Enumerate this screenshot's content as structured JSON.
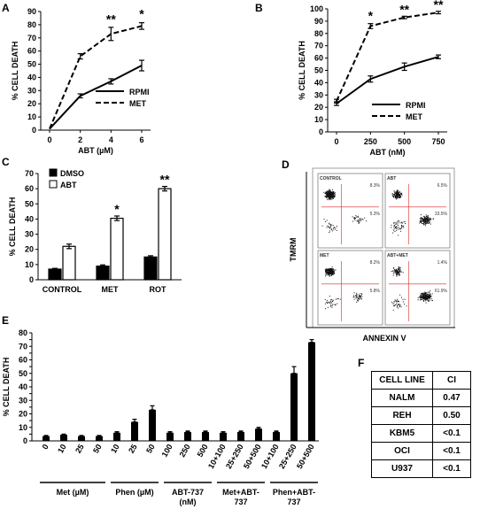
{
  "panel_letters": {
    "A": "A",
    "B": "B",
    "C": "C",
    "D": "D",
    "E": "E",
    "F": "F"
  },
  "chart_data": [
    {
      "id": "A",
      "type": "line",
      "ylabel": "% CELL DEATH",
      "xlabel": "ABT (µM)",
      "x": [
        0,
        2,
        4,
        6
      ],
      "xticks": [
        "0",
        "2",
        "4",
        "6"
      ],
      "ylim": [
        0,
        90
      ],
      "yticks": [
        "0",
        "10",
        "20",
        "30",
        "40",
        "50",
        "60",
        "70",
        "80",
        "90"
      ],
      "series": [
        {
          "name": "RPMI",
          "style": "solid",
          "values": [
            1,
            26,
            37,
            49
          ],
          "err": [
            0,
            1.5,
            2,
            4
          ]
        },
        {
          "name": "MET",
          "style": "dashed",
          "values": [
            1,
            56,
            73,
            79
          ],
          "err": [
            0,
            2,
            5,
            2.5
          ]
        }
      ],
      "annotations": [
        {
          "x": 4,
          "y": 81,
          "text": "**"
        },
        {
          "x": 6,
          "y": 85,
          "text": "*"
        }
      ]
    },
    {
      "id": "B",
      "type": "line",
      "ylabel": "% CELL DEATH",
      "xlabel": "ABT (nM)",
      "x": [
        0,
        250,
        500,
        750
      ],
      "xticks": [
        "0",
        "250",
        "500",
        "750"
      ],
      "ylim": [
        0,
        100
      ],
      "yticks": [
        "0",
        "10",
        "20",
        "30",
        "40",
        "50",
        "60",
        "70",
        "80",
        "90",
        "100"
      ],
      "series": [
        {
          "name": "RPMI",
          "style": "solid",
          "values": [
            23,
            43,
            53,
            61
          ],
          "err": [
            1.5,
            2.5,
            3,
            1.5
          ]
        },
        {
          "name": "MET",
          "style": "dashed",
          "values": [
            25,
            86,
            93,
            97
          ],
          "err": [
            1.5,
            2,
            1,
            1
          ]
        }
      ],
      "annotations": [
        {
          "x": 250,
          "y": 91,
          "text": "*"
        },
        {
          "x": 500,
          "y": 96,
          "text": "**"
        },
        {
          "x": 750,
          "y": 100,
          "text": "**"
        }
      ]
    },
    {
      "id": "C",
      "type": "bar",
      "ylabel": "% CELL DEATH",
      "categories": [
        "CONTROL",
        "MET",
        "ROT"
      ],
      "ylim": [
        0,
        70
      ],
      "yticks": [
        "0",
        "10",
        "20",
        "30",
        "40",
        "50",
        "60",
        "70"
      ],
      "series": [
        {
          "name": "DMSO",
          "fill": "#000000",
          "values": [
            7,
            9,
            15
          ],
          "err": [
            0.5,
            0.8,
            0.8
          ]
        },
        {
          "name": "ABT",
          "fill": "#ffffff",
          "values": [
            22,
            40.5,
            60
          ],
          "err": [
            1.5,
            1.5,
            1.5
          ]
        }
      ],
      "annotations": [
        {
          "category": "MET",
          "text": "*"
        },
        {
          "category": "ROT",
          "text": "**"
        }
      ]
    },
    {
      "id": "E",
      "type": "bar",
      "ylabel": "% CELL DEATH",
      "categories": [
        "0",
        "10",
        "25",
        "50",
        "10",
        "25",
        "50",
        "100",
        "250",
        "500",
        "10+100",
        "25+250",
        "50+500",
        "10+100",
        "25+250",
        "50+500"
      ],
      "values": [
        3.5,
        4.5,
        3.5,
        3.5,
        6,
        14,
        23,
        6,
        6.5,
        6.5,
        6,
        6.5,
        9,
        6.5,
        50,
        73
      ],
      "err": [
        0.5,
        0.5,
        0.5,
        0.5,
        0.8,
        2,
        3,
        0.8,
        0.8,
        0.8,
        0.8,
        0.8,
        1,
        0.8,
        5,
        2
      ],
      "ylim": [
        0,
        80
      ],
      "yticks": [
        "0",
        "5",
        "10",
        "15",
        "20",
        "25",
        "30",
        "35",
        "40",
        "45",
        "50",
        "55",
        "60",
        "65",
        "70",
        "75",
        "80"
      ],
      "groups": [
        {
          "label": "Met (µM)",
          "from": 0,
          "to": 3
        },
        {
          "label": "Phen (µM)",
          "from": 4,
          "to": 6
        },
        {
          "label": "ABT-737 (nM)",
          "from": 7,
          "to": 9
        },
        {
          "label": "Met+ABT-737",
          "from": 10,
          "to": 12
        },
        {
          "label": "Phen+ABT-737",
          "from": 13,
          "to": 15
        }
      ]
    }
  ],
  "panel_D": {
    "ylabel": "TMRM",
    "xlabel": "ANNEXIN V",
    "plots": [
      {
        "label": "CONTROL",
        "ul": "8.3%",
        "lr": "5.3%"
      },
      {
        "label": "ABT",
        "ul": "6.5%",
        "lr": "33.5%"
      },
      {
        "label": "MET",
        "ul": "8.2%",
        "lr": "5.8%"
      },
      {
        "label": "ABT+MET",
        "ul": "1.4%",
        "lr": "61.9%"
      }
    ]
  },
  "table_F": {
    "header": [
      "CELL LINE",
      "CI"
    ],
    "rows": [
      [
        "NALM",
        "0.47"
      ],
      [
        "REH",
        "0.50"
      ],
      [
        "KBM5",
        "<0.1"
      ],
      [
        "OCI",
        "<0.1"
      ],
      [
        "U937",
        "<0.1"
      ]
    ]
  }
}
